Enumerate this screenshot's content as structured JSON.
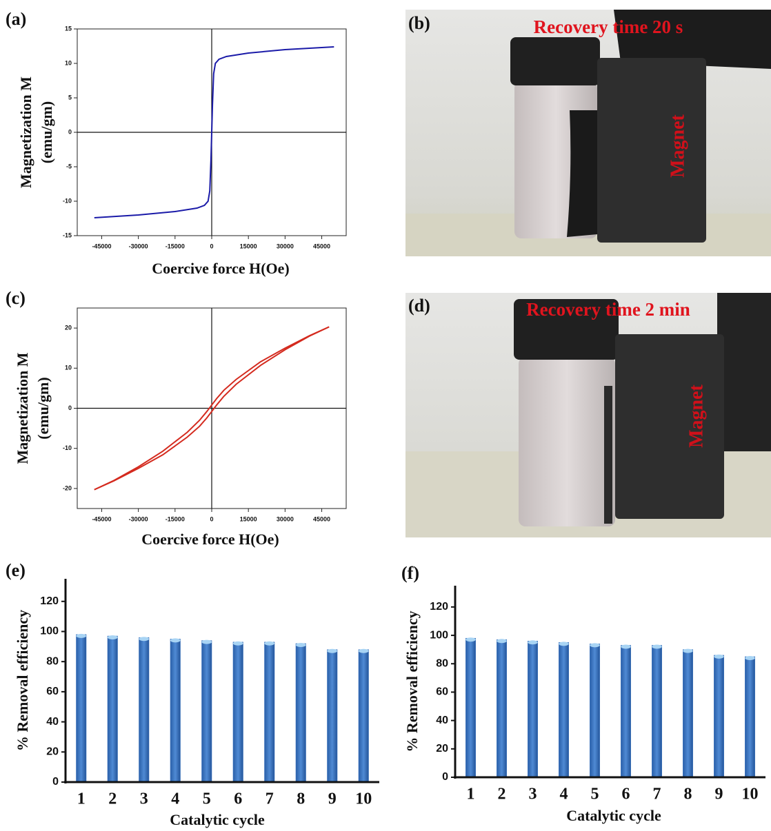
{
  "chart_data": [
    {
      "type": "line",
      "label": "(a)",
      "xlabel": "Coercive force H(Oe)",
      "ylabel": [
        "Magnetization M",
        "(emu/gm)"
      ],
      "x": [
        -48000,
        -30000,
        -15000,
        -6000,
        -3000,
        -1500,
        -800,
        -300,
        0,
        300,
        800,
        1500,
        3000,
        6000,
        15000,
        30000,
        50000
      ],
      "series": [
        {
          "color": "#1a1aa8",
          "values": [
            -12.4,
            -12.0,
            -11.5,
            -11.0,
            -10.6,
            -10.0,
            -8.5,
            -4.0,
            0,
            4.0,
            8.5,
            10.0,
            10.6,
            11.0,
            11.5,
            12.0,
            12.4
          ]
        }
      ],
      "xlim": [
        -55000,
        55000
      ],
      "ylim": [
        -15,
        15
      ],
      "xticks": [
        -45000,
        -30000,
        -15000,
        0,
        15000,
        30000,
        45000
      ],
      "yticks": [
        -15,
        -10,
        -5,
        0,
        5,
        10,
        15
      ]
    },
    {
      "type": "line",
      "label": "(c)",
      "xlabel": "Coercive force H(Oe)",
      "ylabel": [
        "Magnetization M",
        "(emu/gm)"
      ],
      "x": [
        -48000,
        -40000,
        -30000,
        -20000,
        -10000,
        -5000,
        -2000,
        0,
        2000,
        5000,
        10000,
        20000,
        30000,
        40000,
        48000
      ],
      "series": [
        {
          "color": "#d42a1e",
          "values": [
            -20.3,
            -18.0,
            -14.6,
            -10.7,
            -6.0,
            -3.0,
            -0.8,
            0.8,
            2.4,
            4.5,
            7.2,
            11.6,
            15.0,
            18.1,
            20.3
          ]
        },
        {
          "color": "#d42a1e",
          "values": [
            -20.3,
            -18.1,
            -15.0,
            -11.6,
            -7.2,
            -4.5,
            -2.4,
            -0.8,
            0.8,
            3.0,
            6.0,
            10.7,
            14.6,
            18.0,
            20.3
          ]
        }
      ],
      "xlim": [
        -55000,
        55000
      ],
      "ylim": [
        -25,
        25
      ],
      "xticks": [
        -45000,
        -30000,
        -15000,
        0,
        15000,
        30000,
        45000
      ],
      "yticks": [
        -20,
        -10,
        0,
        10,
        20
      ]
    },
    {
      "type": "bar",
      "label": "(e)",
      "xlabel": "Catalytic cycle",
      "ylabel": "% Removal efficiency",
      "color": "#3f78c4",
      "categories": [
        "1",
        "2",
        "3",
        "4",
        "5",
        "6",
        "7",
        "8",
        "9",
        "10"
      ],
      "values": [
        98,
        97,
        96,
        95,
        94,
        93,
        93,
        92,
        88,
        88
      ],
      "ylim": [
        0,
        135
      ],
      "yticks": [
        0,
        20,
        40,
        60,
        80,
        100,
        120
      ]
    },
    {
      "type": "bar",
      "label": "(f)",
      "xlabel": "Catalytic cycle",
      "ylabel": "% Removal efficiency",
      "color": "#3f78c4",
      "categories": [
        "1",
        "2",
        "3",
        "4",
        "5",
        "6",
        "7",
        "8",
        "9",
        "10"
      ],
      "values": [
        98,
        97,
        96,
        95,
        94,
        93,
        93,
        90,
        86,
        85
      ],
      "ylim": [
        0,
        135
      ],
      "yticks": [
        0,
        20,
        40,
        60,
        80,
        100,
        120
      ]
    }
  ],
  "photos": [
    {
      "label": "(b)",
      "caption": "Recovery time 20 s",
      "magnet": "Magnet"
    },
    {
      "label": "(d)",
      "caption": "Recovery time 2 min",
      "magnet": "Magnet"
    }
  ]
}
